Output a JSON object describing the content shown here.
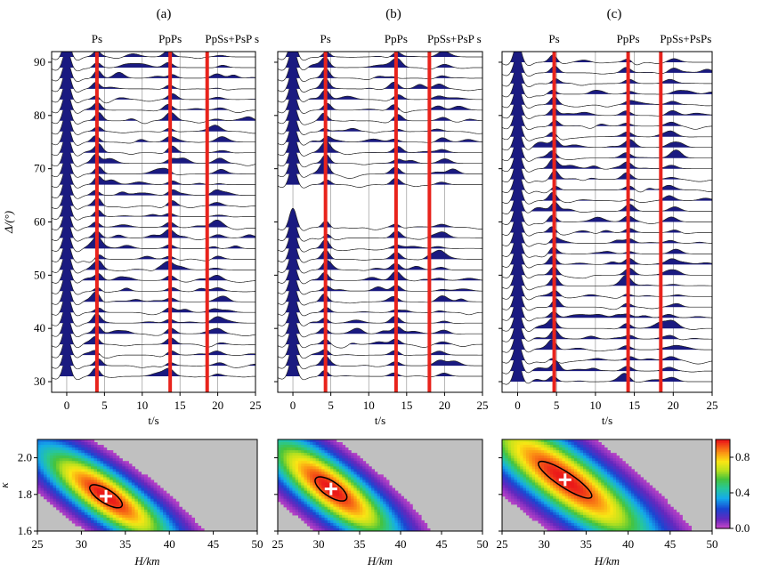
{
  "figure": {
    "description_labels": [
      "(a)",
      "(b)",
      "(c)"
    ],
    "colorbar": {
      "ticks": [
        "0.0",
        "0.4",
        "0.8"
      ],
      "tick_values": [
        0.0,
        0.4,
        0.8
      ],
      "range": [
        0.0,
        1.0
      ]
    }
  },
  "chart_data": [
    {
      "type": "line",
      "panel": "(a)",
      "title": "(a)",
      "xlabel": "t/s",
      "ylabel": "Δ/(°)",
      "xlim": [
        -2,
        25
      ],
      "ylim": [
        28,
        92
      ],
      "xticks": [
        "0",
        "5",
        "10",
        "15",
        "20",
        "25"
      ],
      "yticks": [
        "30",
        "40",
        "50",
        "60",
        "70",
        "80",
        "90"
      ],
      "phases": [
        {
          "name": "Ps",
          "time": 4.0
        },
        {
          "name": "PpPs",
          "time": 13.7
        },
        {
          "name": "PpSs+PsP s",
          "time": 18.6
        }
      ],
      "traces_distance_deg": [
        31,
        33,
        35,
        37,
        39,
        41,
        43,
        45,
        47,
        49,
        51,
        53,
        55,
        57,
        59,
        61,
        63,
        65,
        67,
        69,
        71,
        73,
        75,
        77,
        79,
        81,
        83,
        85,
        87,
        89,
        91
      ]
    },
    {
      "type": "line",
      "panel": "(b)",
      "title": "(b)",
      "xlabel": "t/s",
      "ylabel": "",
      "xlim": [
        -2,
        25
      ],
      "ylim": [
        28,
        92
      ],
      "xticks": [
        "0",
        "5",
        "10",
        "15",
        "20",
        "25"
      ],
      "phases": [
        {
          "name": "Ps",
          "time": 4.3
        },
        {
          "name": "PpPs",
          "time": 13.6
        },
        {
          "name": "PpSs+PsP s",
          "time": 18.0
        }
      ],
      "traces_distance_deg": [
        31,
        33,
        35,
        37,
        39,
        41,
        43,
        45,
        47,
        49,
        51,
        53,
        55,
        57,
        59,
        67,
        69,
        71,
        73,
        75,
        77,
        79,
        81,
        83,
        85,
        87,
        89,
        91
      ]
    },
    {
      "type": "line",
      "panel": "(c)",
      "title": "(c)",
      "xlabel": "t/s",
      "ylabel": "",
      "xlim": [
        -2,
        25
      ],
      "ylim": [
        28,
        92
      ],
      "xticks": [
        "0",
        "5",
        "10",
        "15",
        "20",
        "25"
      ],
      "phases": [
        {
          "name": "Ps",
          "time": 4.7
        },
        {
          "name": "PpPs",
          "time": 14.2
        },
        {
          "name": "PpSs+PsPs",
          "time": 18.4
        }
      ],
      "traces_distance_deg": [
        30,
        32,
        34,
        36,
        38,
        40,
        42,
        44,
        46,
        48,
        50,
        52,
        54,
        56,
        58,
        60,
        62,
        64,
        66,
        68,
        70,
        72,
        74,
        76,
        78,
        80,
        82,
        84,
        86,
        88,
        90
      ]
    },
    {
      "type": "heatmap",
      "panel": "(a) H-κ",
      "xlabel": "H/km",
      "ylabel": "κ",
      "xlim": [
        25,
        50
      ],
      "ylim": [
        1.6,
        2.1
      ],
      "xticks": [
        "25",
        "30",
        "35",
        "40",
        "45",
        "50"
      ],
      "yticks": [
        "1.6",
        "1.8",
        "2.0"
      ],
      "best_H": 32.8,
      "best_kappa": 1.79,
      "ellipse_half_H": 1.7,
      "ellipse_half_kappa": 0.05,
      "spread_H": 5.5,
      "spread_kappa": 0.11
    },
    {
      "type": "heatmap",
      "panel": "(b) H-κ",
      "xlabel": "H/km",
      "ylabel": "",
      "xlim": [
        25,
        50
      ],
      "ylim": [
        1.6,
        2.1
      ],
      "xticks": [
        "25",
        "30",
        "35",
        "40",
        "45",
        "50"
      ],
      "best_H": 31.5,
      "best_kappa": 1.83,
      "ellipse_half_H": 1.8,
      "ellipse_half_kappa": 0.055,
      "spread_H": 5.8,
      "spread_kappa": 0.12
    },
    {
      "type": "heatmap",
      "panel": "(c) H-κ",
      "xlabel": "H/km",
      "ylabel": "",
      "xlim": [
        25,
        50
      ],
      "ylim": [
        1.6,
        2.1
      ],
      "xticks": [
        "25",
        "30",
        "35",
        "40",
        "45",
        "50"
      ],
      "best_H": 32.5,
      "best_kappa": 1.88,
      "ellipse_half_H": 3.0,
      "ellipse_half_kappa": 0.055,
      "spread_H": 7.5,
      "spread_kappa": 0.14
    }
  ]
}
